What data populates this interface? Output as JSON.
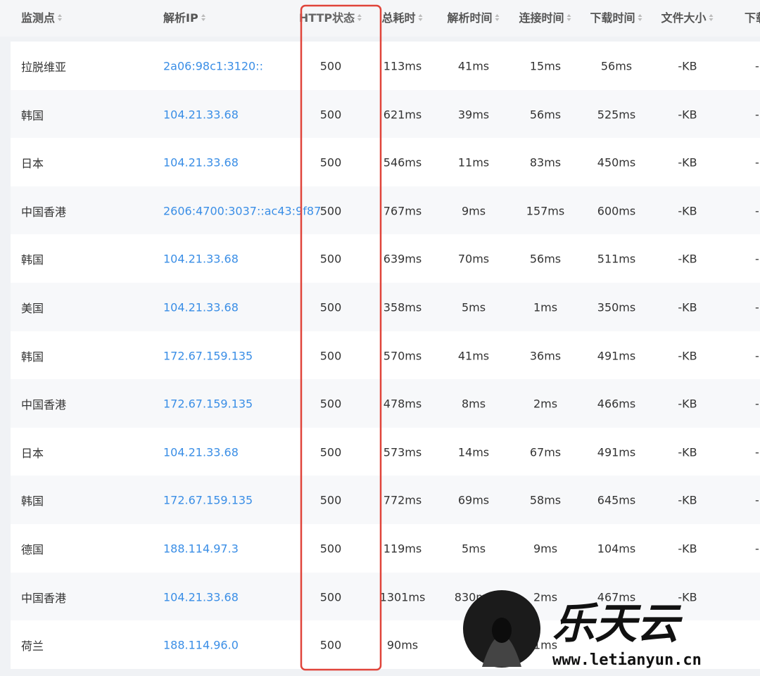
{
  "table": {
    "header": [
      "监测点",
      "解析IP",
      "HTTP状态",
      "总耗时",
      "解析时间",
      "连接时间",
      "下载时间",
      "文件大小",
      "下载"
    ],
    "rows": [
      [
        "拉脱维亚",
        "2a06:98c1:3120::",
        "500",
        "113ms",
        "41ms",
        "15ms",
        "56ms",
        "-KB",
        "-"
      ],
      [
        "韩国",
        "104.21.33.68",
        "500",
        "621ms",
        "39ms",
        "56ms",
        "525ms",
        "-KB",
        "-"
      ],
      [
        "日本",
        "104.21.33.68",
        "500",
        "546ms",
        "11ms",
        "83ms",
        "450ms",
        "-KB",
        "-"
      ],
      [
        "中国香港",
        "2606:4700:3037::ac43:9f87",
        "500",
        "767ms",
        "9ms",
        "157ms",
        "600ms",
        "-KB",
        "-"
      ],
      [
        "韩国",
        "104.21.33.68",
        "500",
        "639ms",
        "70ms",
        "56ms",
        "511ms",
        "-KB",
        "-"
      ],
      [
        "美国",
        "104.21.33.68",
        "500",
        "358ms",
        "5ms",
        "1ms",
        "350ms",
        "-KB",
        "-"
      ],
      [
        "韩国",
        "172.67.159.135",
        "500",
        "570ms",
        "41ms",
        "36ms",
        "491ms",
        "-KB",
        "-"
      ],
      [
        "中国香港",
        "172.67.159.135",
        "500",
        "478ms",
        "8ms",
        "2ms",
        "466ms",
        "-KB",
        "-"
      ],
      [
        "日本",
        "104.21.33.68",
        "500",
        "573ms",
        "14ms",
        "67ms",
        "491ms",
        "-KB",
        "-"
      ],
      [
        "韩国",
        "172.67.159.135",
        "500",
        "772ms",
        "69ms",
        "58ms",
        "645ms",
        "-KB",
        "-"
      ],
      [
        "德国",
        "188.114.97.3",
        "500",
        "119ms",
        "5ms",
        "9ms",
        "104ms",
        "-KB",
        "-"
      ],
      [
        "中国香港",
        "104.21.33.68",
        "500",
        "1301ms",
        "830ms",
        "2ms",
        "467ms",
        "-KB",
        null
      ],
      [
        "荷兰",
        "188.114.96.0",
        "500",
        "90ms",
        null,
        "1ms",
        null,
        null,
        null
      ]
    ]
  },
  "watermark": {
    "brand": "乐天云",
    "url": "www.letianyun.cn"
  }
}
